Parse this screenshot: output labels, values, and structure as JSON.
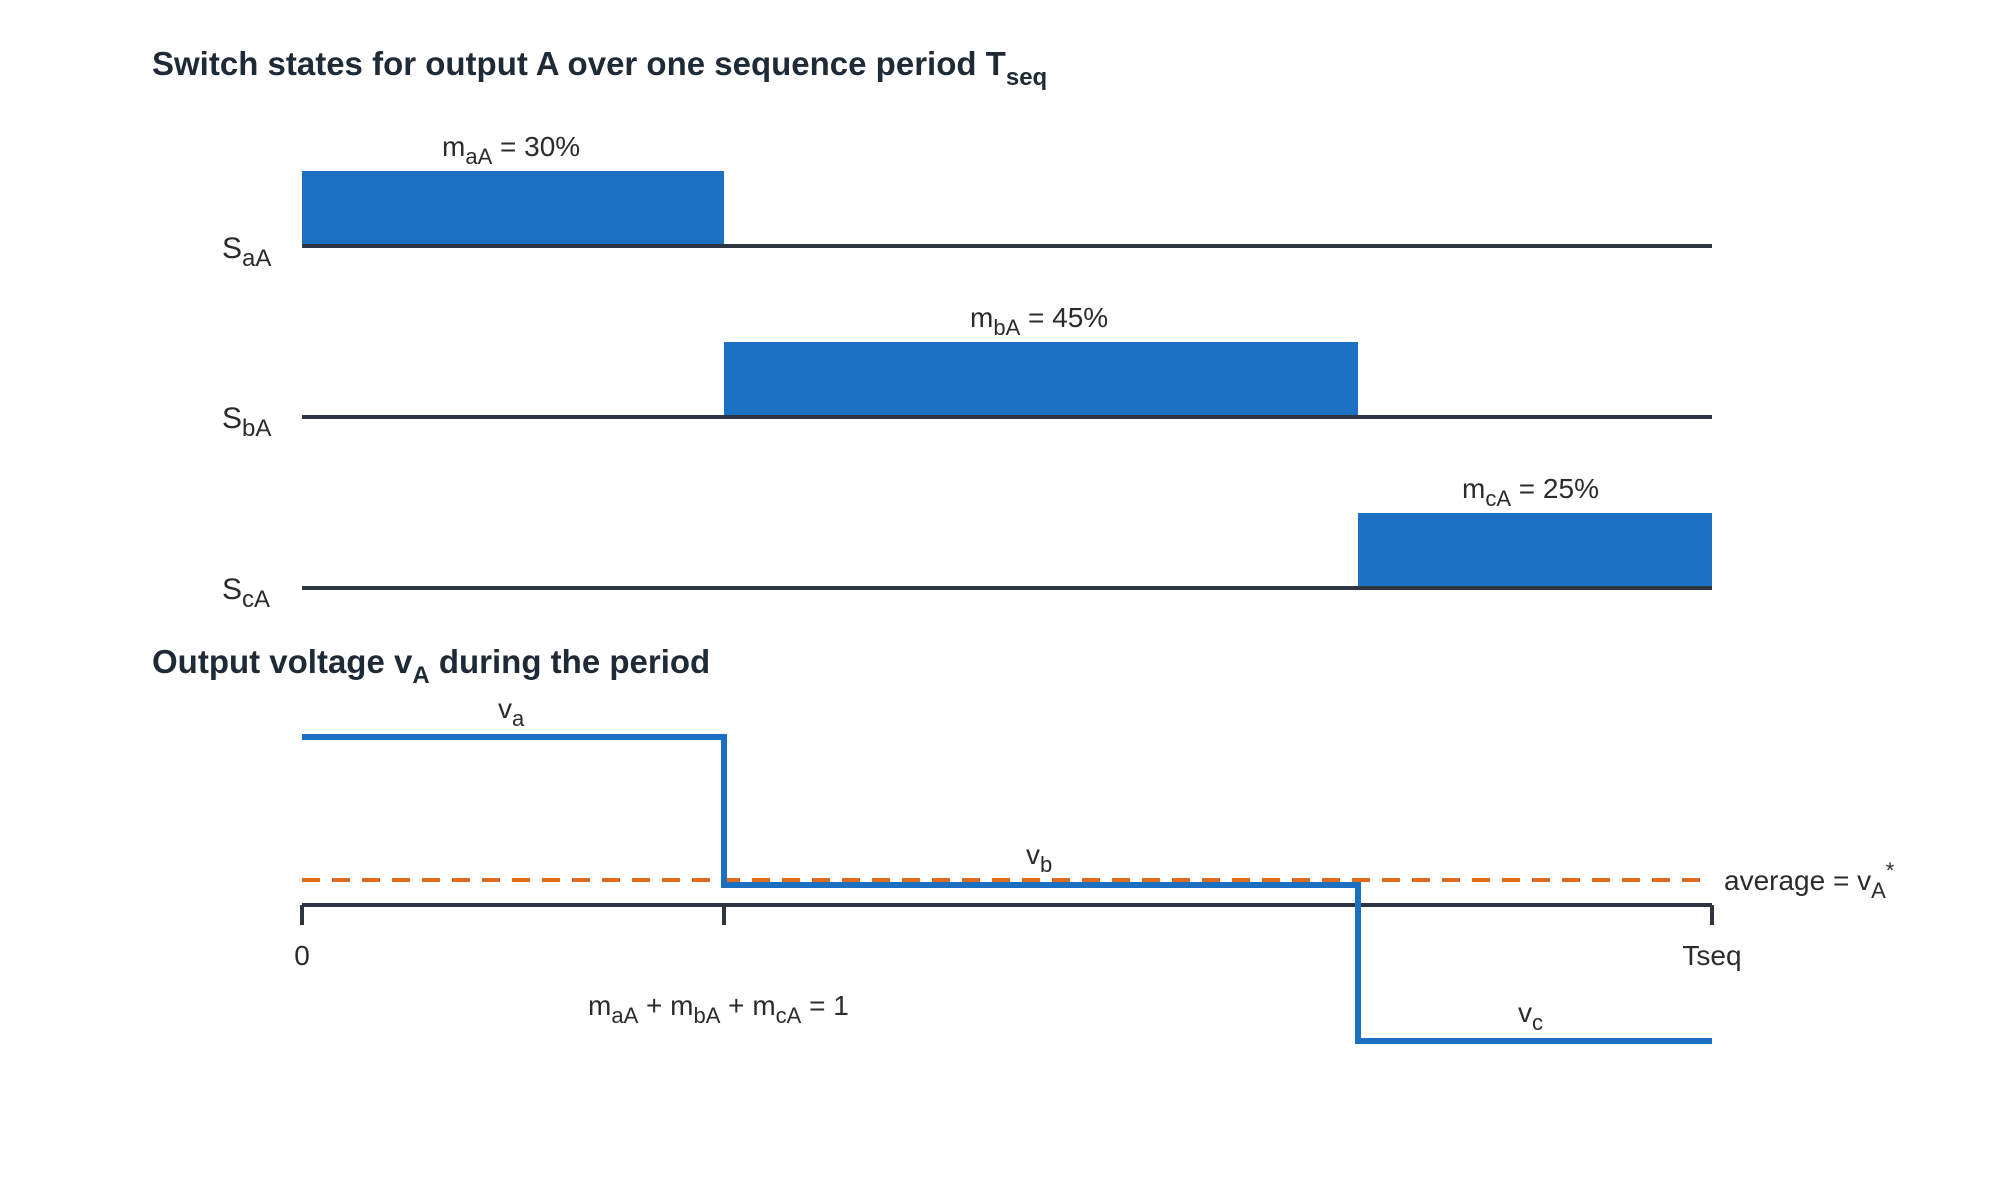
{
  "diagram": {
    "title": {
      "main": "Switch states for output A over one sequence period  T",
      "sub": "seq"
    },
    "switch_rows": [
      {
        "name": "S",
        "sub": "aA",
        "duty_label": {
          "m": "m",
          "sub": "aA",
          "rest": " = 30%"
        },
        "start": 0.0,
        "end": 0.3,
        "duty": 30
      },
      {
        "name": "S",
        "sub": "bA",
        "duty_label": {
          "m": "m",
          "sub": "bA",
          "rest": " = 45%"
        },
        "start": 0.3,
        "end": 0.75,
        "duty": 45
      },
      {
        "name": "S",
        "sub": "cA",
        "duty_label": {
          "m": "m",
          "sub": "cA",
          "rest": " = 25%"
        },
        "start": 0.75,
        "end": 1.0,
        "duty": 25
      }
    ],
    "voltage": {
      "title": {
        "pre": "Output voltage v",
        "sub": "A",
        "post": " during the period"
      },
      "segments": [
        {
          "label": "v",
          "sub": "a"
        },
        {
          "label": "v",
          "sub": "b"
        },
        {
          "label": "v",
          "sub": "c"
        }
      ],
      "average_label": {
        "pre": "average = v",
        "sub": "A",
        "sup": "*"
      },
      "axis_start": "0",
      "axis_end": "Tseq",
      "sum_equation": {
        "m1": "m",
        "s1": "aA",
        "m2": " + m",
        "s2": "bA",
        "m3": " + m",
        "s3": "cA",
        "rest": " = 1"
      }
    }
  },
  "colors": {
    "accent": "#1c70c2",
    "average": "#e06a1b",
    "axis": "#2d3640"
  }
}
